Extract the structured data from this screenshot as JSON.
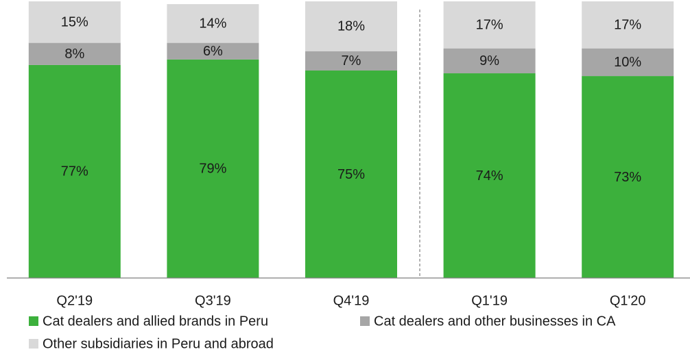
{
  "chart_data": {
    "type": "stacked_bar",
    "categories": [
      "Q2'19",
      "Q3'19",
      "Q4'19",
      "Q1'19",
      "Q1'20"
    ],
    "series": [
      {
        "name": "Cat dealers and allied brands in Peru",
        "color": "#3cb03c",
        "values": [
          77,
          79,
          75,
          74,
          73
        ],
        "value_labels": [
          "77%",
          "79%",
          "75%",
          "74%",
          "73%"
        ]
      },
      {
        "name": "Cat dealers and other businesses in CA",
        "color": "#a6a6a6",
        "values": [
          8,
          6,
          7,
          9,
          10
        ],
        "value_labels": [
          "8%",
          "6%",
          "7%",
          "9%",
          "10%"
        ]
      },
      {
        "name": "Other subsidiaries in Peru and abroad",
        "color": "#d9d9d9",
        "values": [
          15,
          14,
          18,
          17,
          17
        ],
        "value_labels": [
          "15%",
          "14%",
          "18%",
          "17%",
          "17%"
        ]
      }
    ],
    "ylim": [
      0,
      100
    ]
  }
}
